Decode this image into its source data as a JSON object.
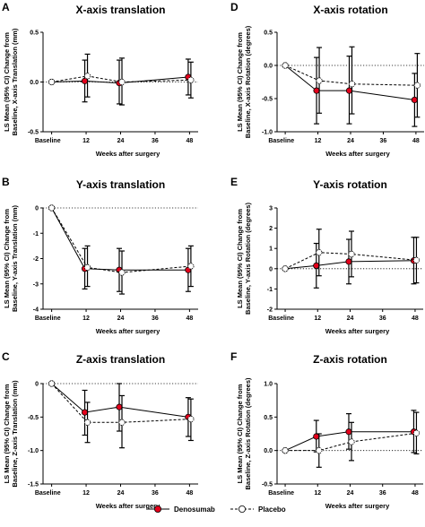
{
  "legend": {
    "denosumab_label": "Denosumab",
    "placebo_label": "Placebo",
    "denosumab_color": "#e3001b",
    "placebo_color": "#ffffff"
  },
  "chart_data": [
    {
      "panel": "A",
      "type": "line",
      "title": "X-axis translation",
      "xlabel": "Weeks after surgery",
      "ylabel": [
        "LS Mean (95% CI) Change from",
        "Baseline, X-axis Translation (mm)"
      ],
      "x": [
        0,
        12,
        24,
        48
      ],
      "xticklabels": [
        "Baseline",
        "12",
        "24",
        "36",
        "48"
      ],
      "xticks": [
        0,
        12,
        24,
        36,
        48
      ],
      "ylim": [
        -0.5,
        0.5
      ],
      "yticks": [
        -0.5,
        0.0,
        0.5
      ],
      "yticklabels": [
        "-0.5",
        "0.0",
        "0.5"
      ],
      "zero_line": true,
      "series": [
        {
          "name": "Denosumab",
          "values": [
            0,
            0.01,
            -0.01,
            0.05
          ],
          "ci_low": [
            null,
            -0.2,
            -0.22,
            -0.13
          ],
          "ci_high": [
            null,
            0.22,
            0.22,
            0.23
          ]
        },
        {
          "name": "Placebo",
          "values": [
            0,
            0.06,
            0.0,
            0.02
          ],
          "ci_low": [
            null,
            -0.15,
            -0.23,
            -0.16
          ],
          "ci_high": [
            null,
            0.28,
            0.24,
            0.2
          ]
        }
      ]
    },
    {
      "panel": "B",
      "type": "line",
      "title": "Y-axis translation",
      "xlabel": "Weeks after surgery",
      "ylabel": [
        "LS Mean (95% CI) Change from",
        "Baseline, Y-axis Translation (mm)"
      ],
      "x": [
        0,
        12,
        24,
        48
      ],
      "xticklabels": [
        "Baseline",
        "12",
        "24",
        "36",
        "48"
      ],
      "xticks": [
        0,
        12,
        24,
        36,
        48
      ],
      "ylim": [
        -4,
        0
      ],
      "yticks": [
        -4,
        -3,
        -2,
        -1,
        0
      ],
      "yticklabels": [
        "-4",
        "-3",
        "-2",
        "-1",
        "0"
      ],
      "zero_line": true,
      "series": [
        {
          "name": "Denosumab",
          "values": [
            0,
            -2.4,
            -2.45,
            -2.45
          ],
          "ci_low": [
            null,
            -3.2,
            -3.3,
            -3.3
          ],
          "ci_high": [
            null,
            -1.6,
            -1.6,
            -1.6
          ]
        },
        {
          "name": "Placebo",
          "values": [
            0,
            -2.35,
            -2.55,
            -2.3
          ],
          "ci_low": [
            null,
            -3.1,
            -3.4,
            -3.1
          ],
          "ci_high": [
            null,
            -1.5,
            -1.7,
            -1.5
          ]
        }
      ]
    },
    {
      "panel": "C",
      "type": "line",
      "title": "Z-axis translation",
      "xlabel": "Weeks after surgery",
      "ylabel": [
        "LS Mean (95% CI) Change from",
        "Baseline, Z-axis Translation (mm)"
      ],
      "x": [
        0,
        12,
        24,
        48
      ],
      "xticklabels": [
        "Baseline",
        "12",
        "24",
        "36",
        "48"
      ],
      "xticks": [
        0,
        12,
        24,
        36,
        48
      ],
      "ylim": [
        -1.5,
        0
      ],
      "yticks": [
        -1.5,
        -1.0,
        -0.5,
        0.0
      ],
      "yticklabels": [
        "-1.5",
        "-1.0",
        "-0.5",
        "0"
      ],
      "zero_line": true,
      "series": [
        {
          "name": "Denosumab",
          "values": [
            0,
            -0.43,
            -0.35,
            -0.5
          ],
          "ci_low": [
            null,
            -0.77,
            -0.71,
            -0.79
          ],
          "ci_high": [
            null,
            -0.1,
            0.0,
            -0.21
          ]
        },
        {
          "name": "Placebo",
          "values": [
            0,
            -0.58,
            -0.58,
            -0.53
          ],
          "ci_low": [
            null,
            -0.88,
            -0.96,
            -0.85
          ],
          "ci_high": [
            null,
            -0.28,
            -0.18,
            -0.23
          ]
        }
      ]
    },
    {
      "panel": "D",
      "type": "line",
      "title": "X-axis rotation",
      "xlabel": "Weeks after surgery",
      "ylabel": [
        "LS Mean (95% CI) Change from",
        "Baseline, X-axis Rotation (degrees)"
      ],
      "x": [
        0,
        12,
        24,
        48
      ],
      "xticklabels": [
        "Baseline",
        "12",
        "24",
        "36",
        "48"
      ],
      "xticks": [
        0,
        12,
        24,
        36,
        48
      ],
      "ylim": [
        -1.0,
        0.5
      ],
      "yticks": [
        -1.0,
        -0.5,
        0.0,
        0.5
      ],
      "yticklabels": [
        "-1.0",
        "-0.5",
        "0.0",
        "0.5"
      ],
      "zero_line": true,
      "series": [
        {
          "name": "Denosumab",
          "values": [
            0,
            -0.38,
            -0.38,
            -0.52
          ],
          "ci_low": [
            null,
            -0.88,
            -0.88,
            -0.92
          ],
          "ci_high": [
            null,
            0.12,
            0.14,
            -0.12
          ]
        },
        {
          "name": "Placebo",
          "values": [
            0,
            -0.23,
            -0.28,
            -0.3
          ],
          "ci_low": [
            null,
            -0.72,
            -0.73,
            -0.78
          ],
          "ci_high": [
            null,
            0.27,
            0.28,
            0.18
          ]
        }
      ]
    },
    {
      "panel": "E",
      "type": "line",
      "title": "Y-axis rotation",
      "xlabel": "Weeks after surgery",
      "ylabel": [
        "LS Mean (95% CI) Change from",
        "Baseline, Y-axis Rotation (degrees)"
      ],
      "x": [
        0,
        12,
        24,
        48
      ],
      "xticklabels": [
        "Baseline",
        "12",
        "24",
        "36",
        "48"
      ],
      "xticks": [
        0,
        12,
        24,
        36,
        48
      ],
      "ylim": [
        -2,
        3
      ],
      "yticks": [
        -2,
        -1,
        0,
        1,
        2,
        3
      ],
      "yticklabels": [
        "-2",
        "-1",
        "0",
        "1",
        "2",
        "3"
      ],
      "zero_line": true,
      "series": [
        {
          "name": "Denosumab",
          "values": [
            0,
            0.15,
            0.35,
            0.4
          ],
          "ci_low": [
            null,
            -0.95,
            -0.75,
            -0.75
          ],
          "ci_high": [
            null,
            1.25,
            1.45,
            1.55
          ]
        },
        {
          "name": "Placebo",
          "values": [
            0,
            0.8,
            0.72,
            0.42
          ],
          "ci_low": [
            null,
            -0.35,
            -0.4,
            -0.7
          ],
          "ci_high": [
            null,
            1.95,
            1.85,
            1.55
          ]
        }
      ]
    },
    {
      "panel": "F",
      "type": "line",
      "title": "Z-axis rotation",
      "xlabel": "Weeks after surgery",
      "ylabel": [
        "LS Mean (95% CI) Change from",
        "Baseline, Z-axis Rotation (degrees)"
      ],
      "x": [
        0,
        12,
        24,
        48
      ],
      "xticklabels": [
        "Baseline",
        "12",
        "24",
        "36",
        "48"
      ],
      "xticks": [
        0,
        12,
        24,
        36,
        48
      ],
      "ylim": [
        -0.5,
        1.0
      ],
      "yticks": [
        -0.5,
        0.0,
        0.5,
        1.0
      ],
      "yticklabels": [
        "-0.5",
        "0.0",
        "0.5",
        "1.0"
      ],
      "zero_line": true,
      "series": [
        {
          "name": "Denosumab",
          "values": [
            0,
            0.21,
            0.28,
            0.28
          ],
          "ci_low": [
            null,
            -0.02,
            0.02,
            -0.03
          ],
          "ci_high": [
            null,
            0.45,
            0.55,
            0.6
          ]
        },
        {
          "name": "Placebo",
          "values": [
            0,
            0.0,
            0.13,
            0.26
          ],
          "ci_low": [
            null,
            -0.25,
            -0.15,
            -0.05
          ],
          "ci_high": [
            null,
            0.25,
            0.42,
            0.57
          ]
        }
      ]
    }
  ]
}
